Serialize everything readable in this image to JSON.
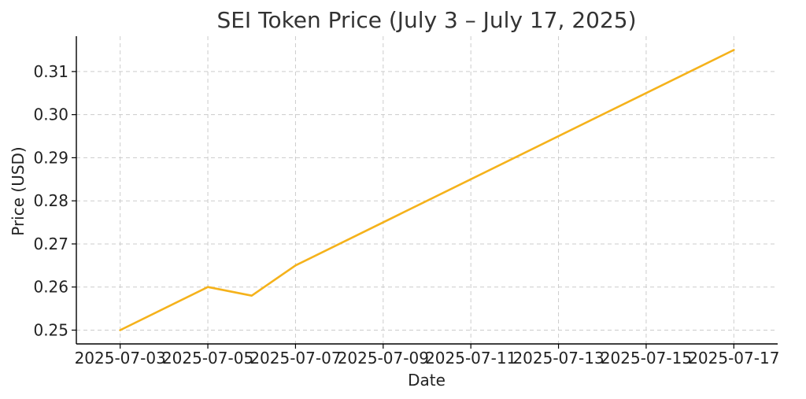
{
  "chart_data": {
    "type": "line",
    "title": "SEI Token Price (July 3 – July 17, 2025)",
    "xlabel": "Date",
    "ylabel": "Price (USD)",
    "x": [
      "2025-07-03",
      "2025-07-05",
      "2025-07-06",
      "2025-07-07",
      "2025-07-17"
    ],
    "series": [
      {
        "values": [
          0.25,
          0.26,
          0.258,
          0.265,
          0.315
        ],
        "color": "#f5b21b"
      }
    ],
    "xticks": [
      "2025-07-03",
      "2025-07-05",
      "2025-07-07",
      "2025-07-09",
      "2025-07-11",
      "2025-07-13",
      "2025-07-15",
      "2025-07-17"
    ],
    "yticks": [
      0.25,
      0.26,
      0.27,
      0.28,
      0.29,
      0.3,
      0.31
    ],
    "ytick_labels": [
      "0.25",
      "0.26",
      "0.27",
      "0.28",
      "0.29",
      "0.30",
      "0.31"
    ],
    "xlim": [
      "2025-07-02",
      "2025-07-18"
    ],
    "ylim": [
      0.2468,
      0.3182
    ],
    "grid": true,
    "legend": "none"
  }
}
